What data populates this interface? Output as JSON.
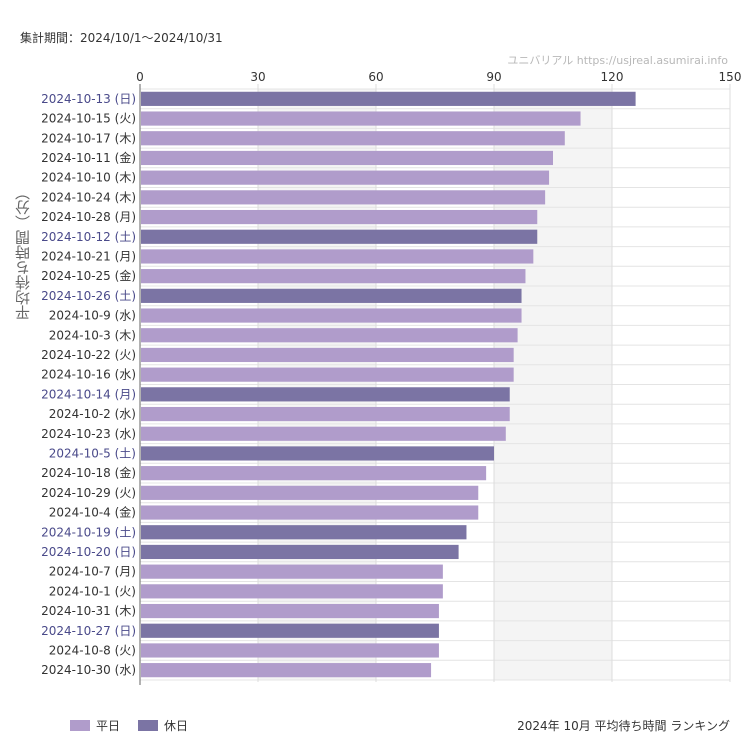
{
  "header": {
    "period": "集計期間：2024/10/1〜2024/10/31",
    "watermark": "ユニバリアル  https://usjreal.asumirai.info"
  },
  "legend": {
    "weekday_label": "平日",
    "holiday_label": "休日"
  },
  "caption": "2024年 10月 平均待ち時間 ランキング",
  "colors": {
    "weekday": "#b09ccb",
    "holiday": "#7b74a4",
    "holiday_text": "#4a4a8a",
    "weekday_text": "#333333"
  },
  "chart_data": {
    "type": "bar",
    "orientation": "horizontal",
    "ylabel": "平均待ち時間（分）",
    "xlim": [
      0,
      150
    ],
    "xticks": [
      "0",
      "30",
      "60",
      "90",
      "120",
      "150"
    ],
    "categories": [
      "2024-10-13 (日)",
      "2024-10-15 (火)",
      "2024-10-17 (木)",
      "2024-10-11 (金)",
      "2024-10-10 (木)",
      "2024-10-24 (木)",
      "2024-10-28 (月)",
      "2024-10-12 (土)",
      "2024-10-21 (月)",
      "2024-10-25 (金)",
      "2024-10-26 (土)",
      "2024-10-9 (水)",
      "2024-10-3 (木)",
      "2024-10-22 (火)",
      "2024-10-16 (水)",
      "2024-10-14 (月)",
      "2024-10-2 (水)",
      "2024-10-23 (水)",
      "2024-10-5 (土)",
      "2024-10-18 (金)",
      "2024-10-29 (火)",
      "2024-10-4 (金)",
      "2024-10-19 (土)",
      "2024-10-20 (日)",
      "2024-10-7 (月)",
      "2024-10-1 (火)",
      "2024-10-31 (木)",
      "2024-10-27 (日)",
      "2024-10-8 (火)",
      "2024-10-30 (水)"
    ],
    "values": [
      126,
      112,
      108,
      105,
      104,
      103,
      101,
      101,
      100,
      98,
      97,
      97,
      96,
      95,
      95,
      94,
      94,
      93,
      90,
      88,
      86,
      86,
      83,
      81,
      77,
      77,
      76,
      76,
      76,
      74
    ],
    "holiday": [
      true,
      false,
      false,
      false,
      false,
      false,
      false,
      true,
      false,
      false,
      true,
      false,
      false,
      false,
      false,
      true,
      false,
      false,
      true,
      false,
      false,
      false,
      true,
      true,
      false,
      false,
      false,
      true,
      false,
      false
    ],
    "grid": true
  }
}
